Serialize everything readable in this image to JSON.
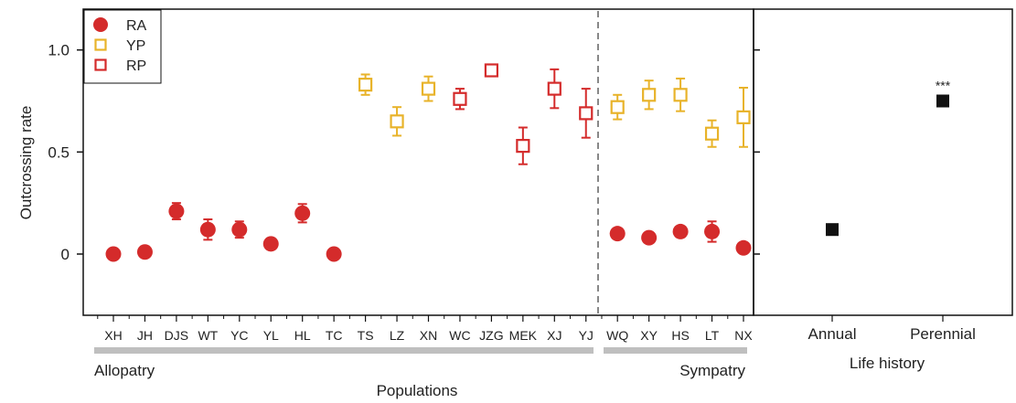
{
  "colors": {
    "RA": "#d42b2b",
    "YP": "#e8b32a",
    "RP": "#d42b2b",
    "life_history": "#111111",
    "divider": "#888888",
    "group_bar": "#bfbfbf"
  },
  "chart_data": [
    {
      "type": "scatter",
      "xlabel": "Populations",
      "ylabel": "Outcrossing rate",
      "ylim": [
        -0.3,
        1.2
      ],
      "yticks": [
        "0",
        "0.5",
        "1.0"
      ],
      "grid": false,
      "legend_position": "top-left",
      "categories": [
        "XH",
        "JH",
        "DJS",
        "WT",
        "YC",
        "YL",
        "HL",
        "TC",
        "TS",
        "LZ",
        "XN",
        "WC",
        "JZG",
        "MEK",
        "XJ",
        "YJ",
        "WQ",
        "XY",
        "HS",
        "LT",
        "NX"
      ],
      "groups": [
        {
          "name": "Allopatry",
          "range": [
            "XH",
            "YJ"
          ]
        },
        {
          "name": "Sympatry",
          "range": [
            "WQ",
            "NX"
          ]
        }
      ],
      "series": [
        {
          "name": "RA",
          "marker": "filled-circle",
          "color": "#d42b2b",
          "points": [
            {
              "x": "XH",
              "y": 0.0,
              "err": 0.0
            },
            {
              "x": "JH",
              "y": 0.01,
              "err": 0.01
            },
            {
              "x": "DJS",
              "y": 0.21,
              "err": 0.04
            },
            {
              "x": "WT",
              "y": 0.12,
              "err": 0.05
            },
            {
              "x": "YC",
              "y": 0.12,
              "err": 0.04
            },
            {
              "x": "YL",
              "y": 0.05,
              "err": 0.0
            },
            {
              "x": "HL",
              "y": 0.2,
              "err": 0.045
            },
            {
              "x": "TC",
              "y": 0.0,
              "err": 0.0
            },
            {
              "x": "WQ",
              "y": 0.1,
              "err": 0.0
            },
            {
              "x": "XY",
              "y": 0.08,
              "err": 0.0
            },
            {
              "x": "HS",
              "y": 0.11,
              "err": 0.025
            },
            {
              "x": "LT",
              "y": 0.11,
              "err": 0.05
            },
            {
              "x": "NX",
              "y": 0.03,
              "err": 0.0
            }
          ]
        },
        {
          "name": "YP",
          "marker": "open-square",
          "color": "#e8b32a",
          "points": [
            {
              "x": "TS",
              "y": 0.83,
              "err": 0.05
            },
            {
              "x": "LZ",
              "y": 0.65,
              "err": 0.07
            },
            {
              "x": "XN",
              "y": 0.81,
              "err": 0.06
            },
            {
              "x": "WQ",
              "y": 0.72,
              "err": 0.06
            },
            {
              "x": "XY",
              "y": 0.78,
              "err": 0.07
            },
            {
              "x": "HS",
              "y": 0.78,
              "err": 0.08
            },
            {
              "x": "LT",
              "y": 0.59,
              "err": 0.065
            },
            {
              "x": "NX",
              "y": 0.67,
              "err": 0.145
            }
          ]
        },
        {
          "name": "RP",
          "marker": "open-square",
          "color": "#d42b2b",
          "points": [
            {
              "x": "WC",
              "y": 0.76,
              "err": 0.05
            },
            {
              "x": "JZG",
              "y": 0.9,
              "err": 0.0
            },
            {
              "x": "MEK",
              "y": 0.53,
              "err": 0.09
            },
            {
              "x": "XJ",
              "y": 0.81,
              "err": 0.095
            },
            {
              "x": "YJ",
              "y": 0.69,
              "err": 0.12
            }
          ]
        }
      ]
    },
    {
      "type": "scatter",
      "xlabel": "Life history",
      "categories": [
        "Annual",
        "Perennial"
      ],
      "ylim": [
        -0.3,
        1.2
      ],
      "series": [
        {
          "marker": "filled-square",
          "color": "#111111",
          "points": [
            {
              "x": "Annual",
              "y": 0.12,
              "err": 0.01
            },
            {
              "x": "Perennial",
              "y": 0.75,
              "err": 0.01
            }
          ]
        }
      ],
      "annotations": [
        {
          "x": "Perennial",
          "text": "***"
        }
      ]
    }
  ]
}
